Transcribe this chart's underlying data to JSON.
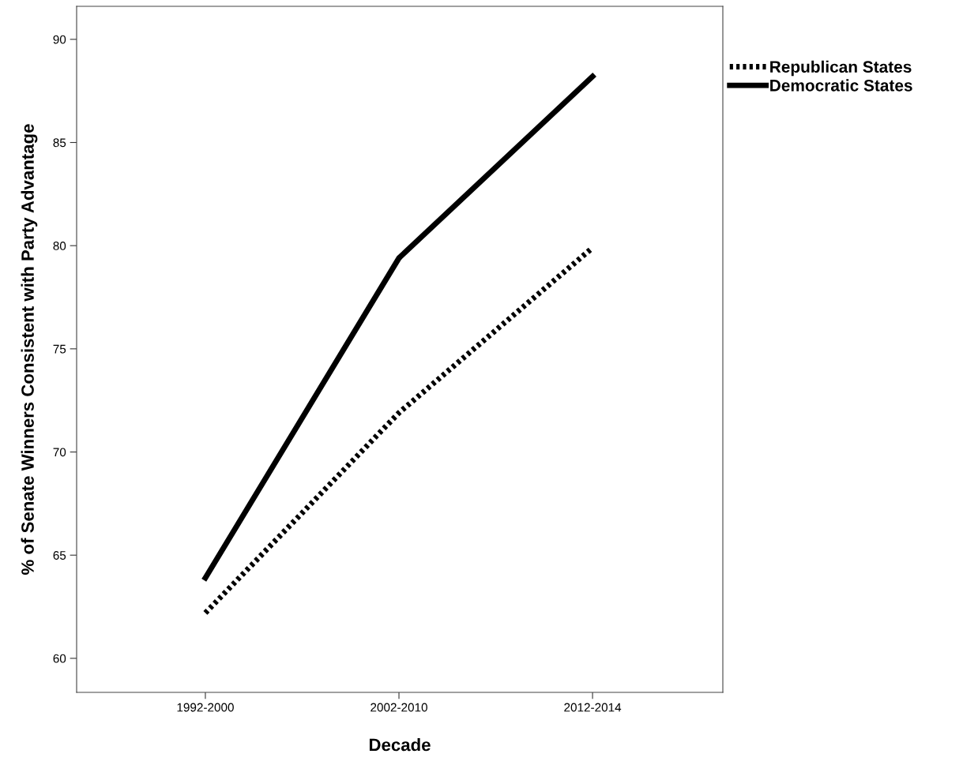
{
  "chart_data": {
    "type": "line",
    "xlabel": "Decade",
    "ylabel": "% of Senate Winners Consistent with Party Advantage",
    "categories": [
      "1992-2000",
      "2002-2010",
      "2012-2014"
    ],
    "series": [
      {
        "name": "Republican States",
        "color": "#000000",
        "line_style": "dotted",
        "values": [
          62.2,
          71.9,
          79.9
        ]
      },
      {
        "name": "Democratic States",
        "color": "#000000",
        "line_style": "solid",
        "values": [
          63.9,
          79.4,
          88.2
        ]
      }
    ],
    "ylim": [
      58.35,
      91.6
    ],
    "yticks": [
      60,
      65,
      70,
      75,
      80,
      85,
      90
    ],
    "grid": false,
    "legend": "top right",
    "marker": "none"
  }
}
